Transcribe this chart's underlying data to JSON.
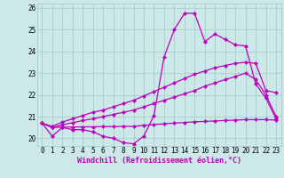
{
  "bg_color": "#cce8e8",
  "grid_color": "#aacccc",
  "line_color": "#bb00bb",
  "marker": "D",
  "markersize": 2.2,
  "linewidth": 0.9,
  "xlabel": "Windchill (Refroidissement éolien,°C)",
  "xlabel_fontsize": 6.0,
  "tick_fontsize": 5.5,
  "xlim": [
    -0.5,
    23.5
  ],
  "ylim": [
    19.65,
    26.2
  ],
  "yticks": [
    20,
    21,
    22,
    23,
    24,
    25,
    26
  ],
  "xticks": [
    0,
    1,
    2,
    3,
    4,
    5,
    6,
    7,
    8,
    9,
    10,
    11,
    12,
    13,
    14,
    15,
    16,
    17,
    18,
    19,
    20,
    21,
    22,
    23
  ],
  "series": [
    [
      20.7,
      20.1,
      20.5,
      20.4,
      20.4,
      20.3,
      20.1,
      20.0,
      19.8,
      19.75,
      20.1,
      21.05,
      23.75,
      25.0,
      25.75,
      25.75,
      24.45,
      24.8,
      24.55,
      24.3,
      24.25,
      22.5,
      21.85,
      20.9
    ],
    [
      20.7,
      20.55,
      20.75,
      20.9,
      21.05,
      21.2,
      21.3,
      21.45,
      21.6,
      21.75,
      21.95,
      22.15,
      22.35,
      22.55,
      22.75,
      22.95,
      23.1,
      23.25,
      23.35,
      23.45,
      23.5,
      23.45,
      22.2,
      22.1
    ],
    [
      20.7,
      20.5,
      20.62,
      20.72,
      20.82,
      20.9,
      21.0,
      21.1,
      21.2,
      21.3,
      21.45,
      21.6,
      21.75,
      21.9,
      22.05,
      22.2,
      22.4,
      22.55,
      22.7,
      22.85,
      23.0,
      22.7,
      22.0,
      21.0
    ],
    [
      20.7,
      20.5,
      20.52,
      20.52,
      20.53,
      20.53,
      20.54,
      20.54,
      20.55,
      20.55,
      20.6,
      20.63,
      20.67,
      20.7,
      20.73,
      20.76,
      20.78,
      20.8,
      20.82,
      20.84,
      20.86,
      20.86,
      20.86,
      20.84
    ]
  ]
}
